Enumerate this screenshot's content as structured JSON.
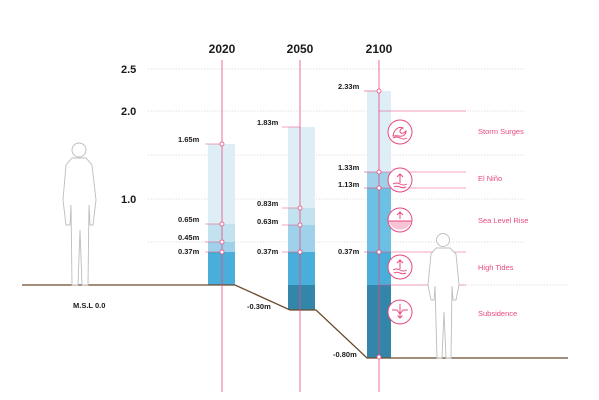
{
  "colors": {
    "pink": "#e84a7f",
    "ground": "#6b4a2b",
    "bar_light": "#deeef6",
    "bar_mid1": "#c2e2f0",
    "bar_mid2": "#9fd2ea",
    "bar_deep": "#49aed9",
    "bar_sub": "#3385a9",
    "grid": "#bdbdbd"
  },
  "axis_labels": [
    "2.5",
    "2.0",
    "1.0"
  ],
  "msl_label": "M.S.L 0.0",
  "columns": [
    {
      "year": "2020",
      "labels": [
        "1.65m",
        "0.65m",
        "0.45m",
        "0.37m"
      ]
    },
    {
      "year": "2050",
      "labels": [
        "1.83m",
        "0.83m",
        "0.63m",
        "0.37m",
        "-0.30m"
      ]
    },
    {
      "year": "2100",
      "labels": [
        "2.33m",
        "1.33m",
        "1.13m",
        "0.37m",
        "-0.80m"
      ]
    }
  ],
  "legend": [
    {
      "label": "Storm Surges",
      "icon": "storm-surge-icon"
    },
    {
      "label": "El Niño",
      "icon": "el-nino-icon"
    },
    {
      "label": "Sea Level Rise",
      "icon": "sea-level-rise-icon"
    },
    {
      "label": "High Tides",
      "icon": "high-tide-icon"
    },
    {
      "label": "Subsidence",
      "icon": "subsidence-icon"
    }
  ]
}
